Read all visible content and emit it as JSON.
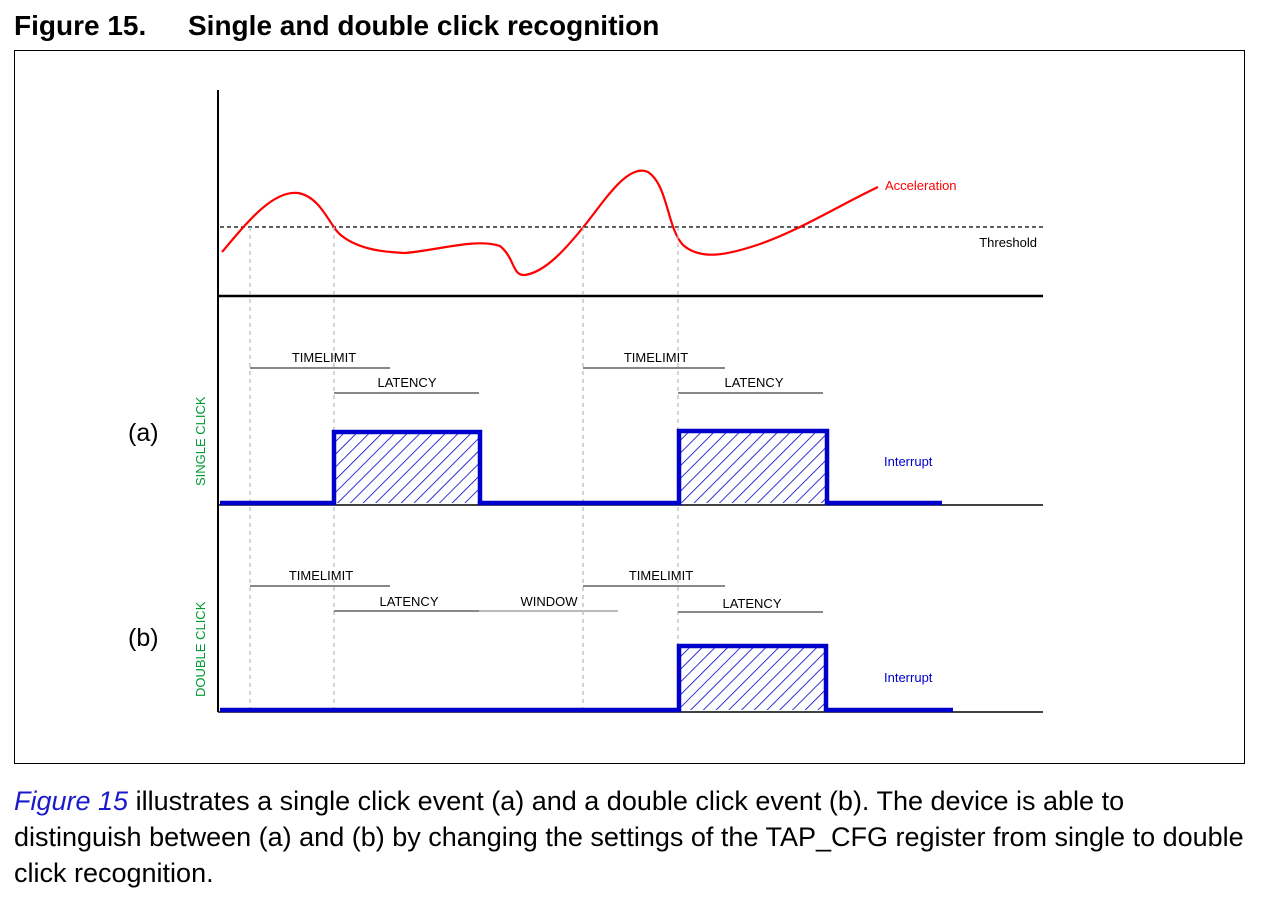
{
  "figure": {
    "number": "Figure 15.",
    "title": "Single and double click recognition"
  },
  "diagram": {
    "acceleration_label": "Acceleration",
    "threshold_label": "Threshold",
    "interrupt_label": "Interrupt",
    "colors": {
      "acceleration": "#ff0000",
      "interrupt": "#0000cc",
      "row_label": "#009933",
      "timing_bar": "#888888"
    },
    "single": {
      "row_letter": "(a)",
      "row_label": "SINGLE CLICK",
      "timelimit_1": "TIMELIMIT",
      "latency_1": "LATENCY",
      "timelimit_2": "TIMELIMIT",
      "latency_2": "LATENCY",
      "interrupt_label": "Interrupt"
    },
    "double": {
      "row_letter": "(b)",
      "row_label": "DOUBLE CLICK",
      "timelimit_1": "TIMELIMIT",
      "latency_1": "LATENCY",
      "window": "WINDOW",
      "timelimit_2": "TIMELIMIT",
      "latency_2": "LATENCY",
      "interrupt_label": "Interrupt"
    }
  },
  "caption": {
    "ref": "Figure 15",
    "text": " illustrates a single click event (a) and a double click event (b). The device is able to distinguish between (a) and (b) by changing the settings of the TAP_CFG register from single to double click recognition."
  }
}
